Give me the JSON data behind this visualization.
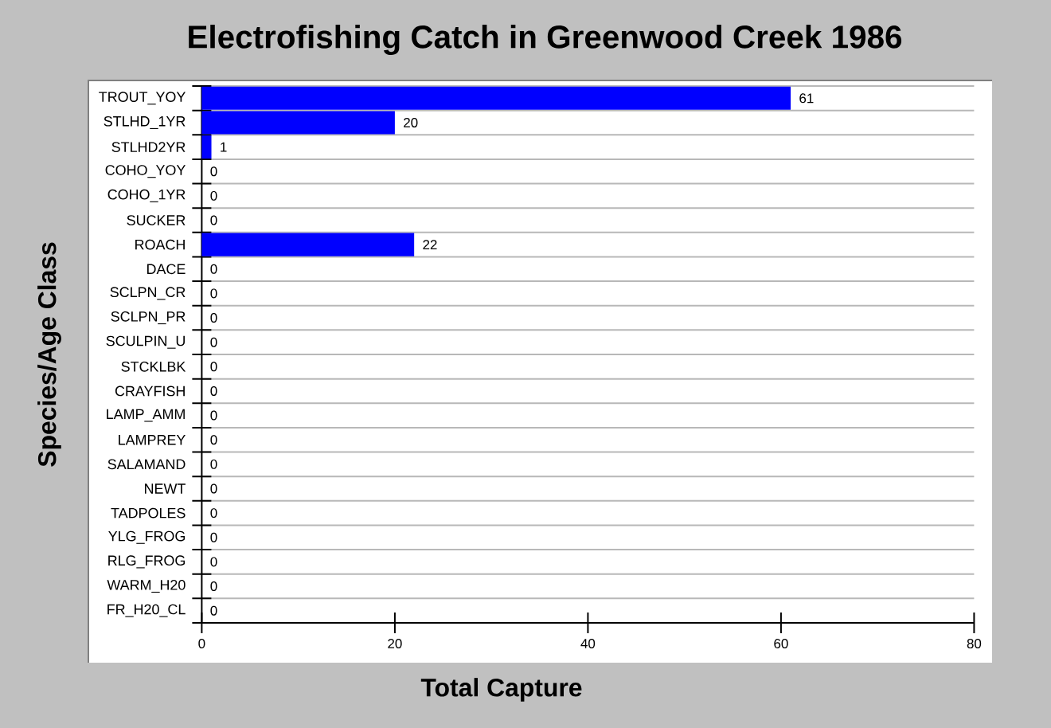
{
  "chart_data": {
    "type": "bar",
    "orientation": "horizontal",
    "title": "Electrofishing Catch in Greenwood Creek 1986",
    "xlabel": "Total Capture",
    "ylabel": "Species/Age Class",
    "categories": [
      "TROUT_YOY",
      "STLHD_1YR",
      "STLHD2YR",
      "COHO_YOY",
      "COHO_1YR",
      "SUCKER",
      "ROACH",
      "DACE",
      "SCLPN_CR",
      "SCLPN_PR",
      "SCULPIN_U",
      "STCKLBK",
      "CRAYFISH",
      "LAMP_AMM",
      "LAMPREY",
      "SALAMAND",
      "NEWT",
      "TADPOLES",
      "YLG_FROG",
      "RLG_FROG",
      "WARM_H20",
      "FR_H20_CL"
    ],
    "values": [
      61,
      20,
      1,
      0,
      0,
      0,
      22,
      0,
      0,
      0,
      0,
      0,
      0,
      0,
      0,
      0,
      0,
      0,
      0,
      0,
      0,
      0
    ],
    "color": "#0000ff",
    "xlim": [
      0,
      80
    ],
    "xticks": [
      0,
      20,
      40,
      60,
      80
    ],
    "grid": "y",
    "data_labels": true
  }
}
